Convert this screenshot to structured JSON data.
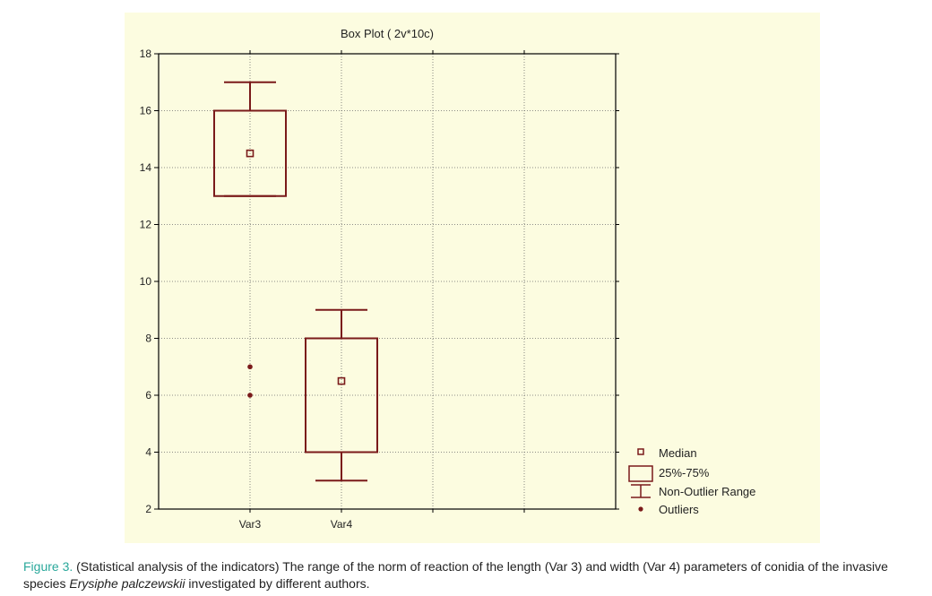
{
  "colors": {
    "panel_background": "#fcfce0",
    "box_color": "#7a1a1a",
    "axis_color": "#000000",
    "caption_label_color": "#2aa89b"
  },
  "chart_data": {
    "type": "boxplot",
    "title": "Box Plot ( 2v*10c)",
    "xlabel": "",
    "ylabel": "",
    "ylim": [
      2,
      18
    ],
    "yticks": [
      2,
      4,
      6,
      8,
      10,
      12,
      14,
      16,
      18
    ],
    "categories": [
      "Var3",
      "Var4"
    ],
    "grid": true,
    "legend_position": "bottom-right",
    "series": [
      {
        "category": "Var3",
        "median": 14.5,
        "q1": 13,
        "q3": 16,
        "whisker_low": 13,
        "whisker_high": 17,
        "outliers": [
          6,
          7
        ]
      },
      {
        "category": "Var4",
        "median": 6.5,
        "q1": 4,
        "q3": 8,
        "whisker_low": 3,
        "whisker_high": 9,
        "outliers": []
      }
    ],
    "legend": {
      "median": "Median",
      "box": "25%-75%",
      "range": "Non-Outlier Range",
      "outliers": "Outliers"
    }
  },
  "caption": {
    "label": "Figure 3.",
    "text_part1": " (Statistical analysis of the indicators) The range of the norm of reaction of the length (Var 3) and width (Var 4) parameters of conidia of the invasive species ",
    "species": "Erysiphe palczewskii",
    "text_part2": " investigated by different authors."
  }
}
